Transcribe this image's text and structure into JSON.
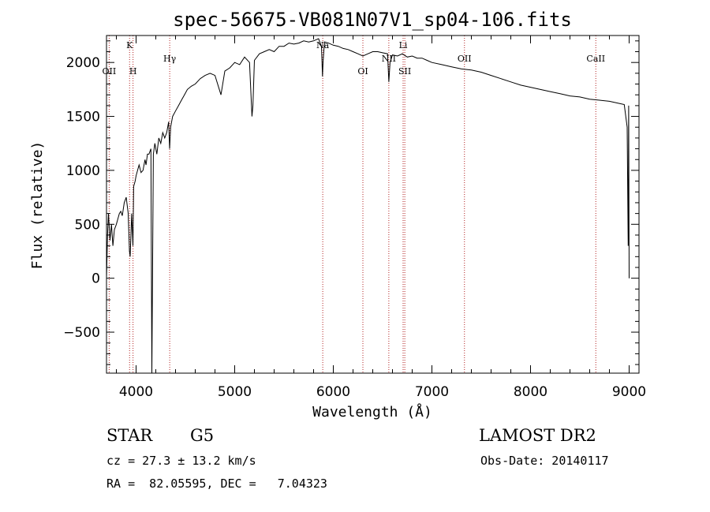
{
  "chart_data": {
    "type": "line",
    "title": "spec-56675-VB081N07V1_sp04-106.fits",
    "xlabel": "Wavelength (Å)",
    "ylabel": "Flux (relative)",
    "xlim": [
      3700,
      9100
    ],
    "ylim": [
      -880,
      2250
    ],
    "x_ticks": [
      4000,
      5000,
      6000,
      7000,
      8000,
      9000
    ],
    "y_ticks": [
      -500,
      0,
      500,
      1000,
      1500,
      2000
    ],
    "grid": false,
    "series": [
      {
        "color": "#000000",
        "x": [
          3700,
          3710,
          3720,
          3735,
          3750,
          3765,
          3780,
          3800,
          3815,
          3830,
          3845,
          3860,
          3880,
          3900,
          3920,
          3933,
          3940,
          3955,
          3968,
          3975,
          3990,
          4000,
          4015,
          4030,
          4050,
          4070,
          4090,
          4101,
          4115,
          4130,
          4150,
          4160,
          4175,
          4190,
          4210,
          4230,
          4250,
          4270,
          4290,
          4310,
          4330,
          4340,
          4350,
          4370,
          4400,
          4430,
          4460,
          4490,
          4520,
          4560,
          4600,
          4650,
          4700,
          4750,
          4800,
          4861,
          4900,
          4950,
          5000,
          5050,
          5100,
          5150,
          5175,
          5185,
          5200,
          5250,
          5300,
          5350,
          5400,
          5450,
          5500,
          5550,
          5600,
          5650,
          5700,
          5750,
          5800,
          5850,
          5880,
          5890,
          5896,
          5910,
          5950,
          6000,
          6050,
          6100,
          6150,
          6200,
          6250,
          6300,
          6350,
          6400,
          6450,
          6500,
          6550,
          6563,
          6575,
          6600,
          6650,
          6700,
          6750,
          6800,
          6850,
          6900,
          6950,
          7000,
          7100,
          7200,
          7300,
          7400,
          7500,
          7600,
          7700,
          7800,
          7900,
          8000,
          8100,
          8200,
          8300,
          8400,
          8500,
          8600,
          8700,
          8800,
          8900,
          8950,
          8980,
          8990,
          8995,
          9000
        ],
        "y": [
          0,
          400,
          600,
          350,
          500,
          300,
          450,
          500,
          550,
          600,
          620,
          580,
          700,
          750,
          600,
          250,
          200,
          600,
          300,
          850,
          900,
          950,
          1000,
          1050,
          980,
          1000,
          1100,
          1050,
          1150,
          1150,
          1200,
          -880,
          1150,
          1250,
          1150,
          1300,
          1250,
          1350,
          1300,
          1350,
          1450,
          1200,
          1400,
          1500,
          1550,
          1600,
          1650,
          1700,
          1750,
          1780,
          1800,
          1850,
          1880,
          1900,
          1880,
          1700,
          1920,
          1950,
          2000,
          1980,
          2050,
          2000,
          1500,
          1600,
          2020,
          2080,
          2100,
          2120,
          2100,
          2150,
          2150,
          2180,
          2170,
          2180,
          2200,
          2190,
          2200,
          2220,
          2150,
          1870,
          2000,
          2190,
          2180,
          2160,
          2150,
          2130,
          2120,
          2100,
          2080,
          2060,
          2080,
          2100,
          2100,
          2090,
          2080,
          1820,
          2000,
          2070,
          2060,
          2080,
          2050,
          2060,
          2040,
          2040,
          2020,
          2000,
          1980,
          1960,
          1940,
          1930,
          1910,
          1880,
          1850,
          1820,
          1790,
          1770,
          1750,
          1730,
          1710,
          1690,
          1680,
          1660,
          1650,
          1640,
          1620,
          1610,
          1400,
          300,
          1600,
          0
        ]
      }
    ],
    "lines": [
      {
        "label": "OII",
        "x": 3727,
        "pos": "low"
      },
      {
        "label": "K",
        "x": 3934,
        "pos": "high"
      },
      {
        "label": "H",
        "x": 3969,
        "pos": "low"
      },
      {
        "label": "Hγ",
        "x": 4341,
        "pos": "mid"
      },
      {
        "label": "Na",
        "x": 5893,
        "pos": "high"
      },
      {
        "label": "OI",
        "x": 6300,
        "pos": "low"
      },
      {
        "label": "NII",
        "x": 6563,
        "pos": "mid"
      },
      {
        "label": "Li",
        "x": 6708,
        "pos": "high"
      },
      {
        "label": "SII",
        "x": 6725,
        "pos": "low"
      },
      {
        "label": "OII",
        "x": 7330,
        "pos": "mid"
      },
      {
        "label": "CaII",
        "x": 8662,
        "pos": "mid"
      }
    ]
  },
  "info": {
    "object_class": "STAR",
    "subclass": "G5",
    "survey": "LAMOST DR2",
    "cz": "cz = 27.3 ± 13.2 km/s",
    "obs_date": "Obs-Date: 20140117",
    "coords": "RA =  82.05595, DEC =   7.04323"
  },
  "colors": {
    "spectrum": "#000000",
    "line_marker": "#b22222",
    "axes": "#000000",
    "background": "#ffffff"
  }
}
